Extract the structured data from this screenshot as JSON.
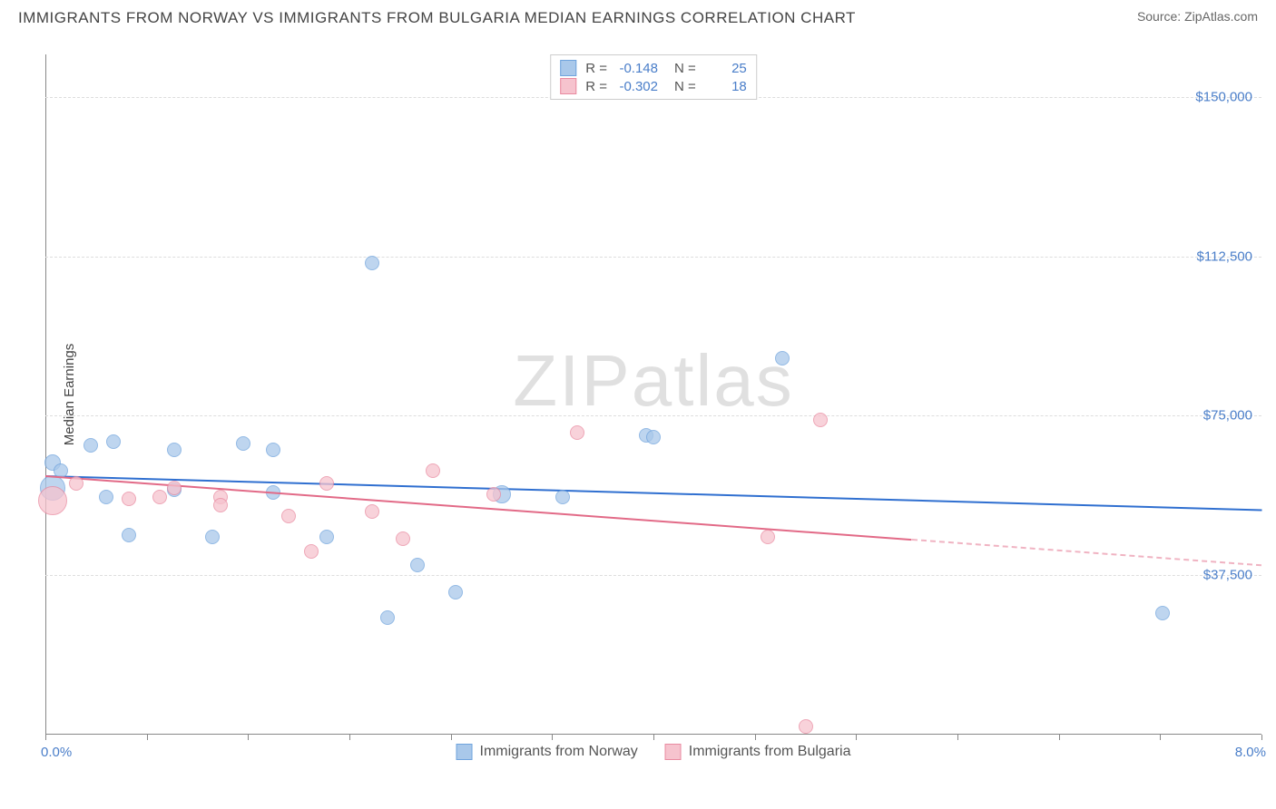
{
  "title": "IMMIGRANTS FROM NORWAY VS IMMIGRANTS FROM BULGARIA MEDIAN EARNINGS CORRELATION CHART",
  "source_label": "Source: ZipAtlas.com",
  "watermark": {
    "zip": "ZIP",
    "atlas": "atlas"
  },
  "y_axis": {
    "label": "Median Earnings",
    "min": 0,
    "max": 160000,
    "ticks": [
      {
        "value": 37500,
        "label": "$37,500"
      },
      {
        "value": 75000,
        "label": "$75,000"
      },
      {
        "value": 112500,
        "label": "$112,500"
      },
      {
        "value": 150000,
        "label": "$150,000"
      }
    ]
  },
  "x_axis": {
    "min": 0.0,
    "max": 8.0,
    "left_label": "0.0%",
    "right_label": "8.0%",
    "tick_positions": [
      0,
      0.67,
      1.33,
      2.0,
      2.67,
      3.33,
      4.0,
      4.67,
      5.33,
      6.0,
      6.67,
      7.33,
      8.0
    ]
  },
  "series": [
    {
      "name": "Immigrants from Norway",
      "color_fill": "#a9c8ea",
      "color_stroke": "#6fa3dd",
      "line_color": "#2f6fd0",
      "r_value": "-0.148",
      "n_value": "25",
      "trend_y_at_xmin": 61000,
      "trend_y_at_xmax": 53000,
      "trend_solid_until_x": 8.0,
      "points": [
        {
          "x": 0.05,
          "y": 58000,
          "r": 14
        },
        {
          "x": 0.05,
          "y": 64000,
          "r": 9
        },
        {
          "x": 0.1,
          "y": 62000,
          "r": 8
        },
        {
          "x": 0.3,
          "y": 68000,
          "r": 8
        },
        {
          "x": 0.4,
          "y": 56000,
          "r": 8
        },
        {
          "x": 0.45,
          "y": 69000,
          "r": 8
        },
        {
          "x": 0.55,
          "y": 47000,
          "r": 8
        },
        {
          "x": 0.85,
          "y": 67000,
          "r": 8
        },
        {
          "x": 0.85,
          "y": 57500,
          "r": 8
        },
        {
          "x": 1.1,
          "y": 46500,
          "r": 8
        },
        {
          "x": 1.3,
          "y": 68500,
          "r": 8
        },
        {
          "x": 1.5,
          "y": 67000,
          "r": 8
        },
        {
          "x": 1.5,
          "y": 57000,
          "r": 8
        },
        {
          "x": 1.85,
          "y": 46500,
          "r": 8
        },
        {
          "x": 2.15,
          "y": 111000,
          "r": 8
        },
        {
          "x": 2.25,
          "y": 27500,
          "r": 8
        },
        {
          "x": 2.45,
          "y": 40000,
          "r": 8
        },
        {
          "x": 2.7,
          "y": 33500,
          "r": 8
        },
        {
          "x": 3.0,
          "y": 56500,
          "r": 10
        },
        {
          "x": 3.4,
          "y": 56000,
          "r": 8
        },
        {
          "x": 3.95,
          "y": 70500,
          "r": 8
        },
        {
          "x": 4.0,
          "y": 70000,
          "r": 8
        },
        {
          "x": 4.85,
          "y": 88500,
          "r": 8
        },
        {
          "x": 7.35,
          "y": 28500,
          "r": 8
        }
      ]
    },
    {
      "name": "Immigrants from Bulgaria",
      "color_fill": "#f6c3ce",
      "color_stroke": "#e98aa0",
      "line_color": "#e26a87",
      "r_value": "-0.302",
      "n_value": "18",
      "trend_y_at_xmin": 61000,
      "trend_y_at_xmax": 40000,
      "trend_solid_until_x": 5.7,
      "points": [
        {
          "x": 0.05,
          "y": 55000,
          "r": 16
        },
        {
          "x": 0.2,
          "y": 59000,
          "r": 8
        },
        {
          "x": 0.55,
          "y": 55500,
          "r": 8
        },
        {
          "x": 0.75,
          "y": 56000,
          "r": 8
        },
        {
          "x": 0.85,
          "y": 58000,
          "r": 8
        },
        {
          "x": 1.15,
          "y": 56000,
          "r": 8
        },
        {
          "x": 1.15,
          "y": 54000,
          "r": 8
        },
        {
          "x": 1.6,
          "y": 51500,
          "r": 8
        },
        {
          "x": 1.75,
          "y": 43000,
          "r": 8
        },
        {
          "x": 1.85,
          "y": 59000,
          "r": 8
        },
        {
          "x": 2.15,
          "y": 52500,
          "r": 8
        },
        {
          "x": 2.35,
          "y": 46000,
          "r": 8
        },
        {
          "x": 2.55,
          "y": 62000,
          "r": 8
        },
        {
          "x": 2.95,
          "y": 56500,
          "r": 8
        },
        {
          "x": 3.5,
          "y": 71000,
          "r": 8
        },
        {
          "x": 4.75,
          "y": 46500,
          "r": 8
        },
        {
          "x": 5.0,
          "y": 2000,
          "r": 8
        },
        {
          "x": 5.1,
          "y": 74000,
          "r": 8
        }
      ]
    }
  ],
  "legend_labels": {
    "r": "R =",
    "n": "N ="
  },
  "colors": {
    "axis_text": "#4a7ec9",
    "grid": "#dddddd",
    "axis_line": "#888888",
    "background": "#ffffff"
  }
}
